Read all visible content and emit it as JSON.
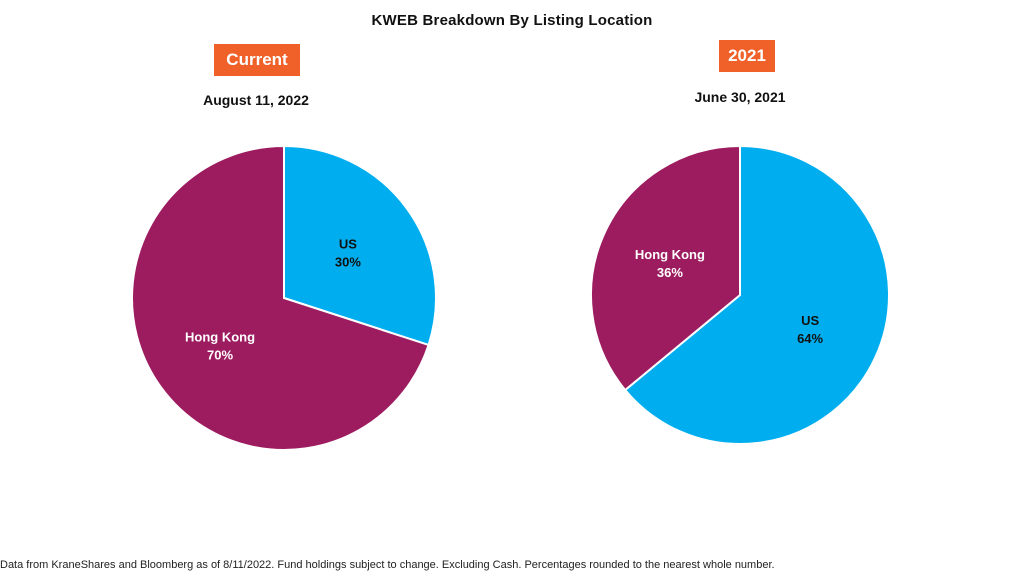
{
  "colors": {
    "accent": "#F0612A",
    "hong_kong": "#9C1C5F",
    "us": "#00AEEF"
  },
  "chart_data": {
    "title": "KWEB Breakdown By Listing Location",
    "type": "pie",
    "charts": [
      {
        "badge": "Current",
        "date": "August 11, 2022",
        "slices": [
          {
            "label": "US",
            "value": 30,
            "value_label": "30%",
            "color": "#00AEEF",
            "label_color": "#111111"
          },
          {
            "label": "Hong Kong",
            "value": 70,
            "value_label": "70%",
            "color": "#9C1C5F",
            "label_color": "#ffffff"
          }
        ]
      },
      {
        "badge": "2021",
        "date": "June 30, 2021",
        "slices": [
          {
            "label": "US",
            "value": 64,
            "value_label": "64%",
            "color": "#00AEEF",
            "label_color": "#111111"
          },
          {
            "label": "Hong Kong",
            "value": 36,
            "value_label": "36%",
            "color": "#9C1C5F",
            "label_color": "#ffffff"
          }
        ]
      }
    ]
  },
  "footnote": "Data from KraneShares and Bloomberg as of 8/11/2022. Fund holdings subject to change. Excluding Cash. Percentages rounded to the nearest whole number."
}
